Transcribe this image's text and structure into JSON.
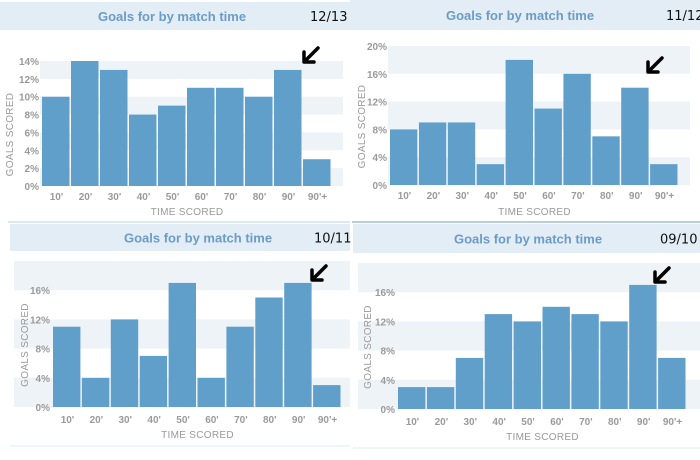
{
  "colors": {
    "bar": "#619fcb",
    "band": "#eef3f8",
    "header": "#e3edf6",
    "title": "#6b9cc6",
    "arrow": "#000000"
  },
  "chart_data": [
    {
      "type": "bar",
      "title": "Goals for by match time",
      "season": "12/13",
      "xlabel": "TIME SCORED",
      "ylabel": "GOALS SCORED",
      "categories": [
        "10'",
        "20'",
        "30'",
        "40'",
        "50'",
        "60'",
        "70'",
        "80'",
        "90'",
        "90'+"
      ],
      "values": [
        10,
        14,
        13,
        8,
        9,
        11,
        11,
        10,
        13,
        3
      ],
      "yticks": [
        "0%",
        "2%",
        "4%",
        "6%",
        "8%",
        "10%",
        "12%",
        "14%"
      ],
      "ytick_values": [
        0,
        2,
        4,
        6,
        8,
        10,
        12,
        14
      ],
      "ylim": [
        0,
        14
      ],
      "unit": "%",
      "annotation": "arrow pointing at 90' bar"
    },
    {
      "type": "bar",
      "title": "Goals for by match time",
      "season": "11/12",
      "xlabel": "TIME SCORED",
      "ylabel": "GOALS SCORED",
      "categories": [
        "10'",
        "20'",
        "30'",
        "40'",
        "50'",
        "60'",
        "70'",
        "80'",
        "90'",
        "90'+"
      ],
      "values": [
        8,
        9,
        9,
        3,
        18,
        11,
        16,
        7,
        14,
        3
      ],
      "yticks": [
        "0%",
        "4%",
        "8%",
        "12%",
        "16%",
        "20%"
      ],
      "ytick_values": [
        0,
        4,
        8,
        12,
        16,
        20
      ],
      "ylim": [
        0,
        20
      ],
      "unit": "%",
      "annotation": "arrow pointing at 90' bar"
    },
    {
      "type": "bar",
      "title": "Goals for by match time",
      "season": "10/11",
      "xlabel": "TIME SCORED",
      "ylabel": "GOALS SCORED",
      "categories": [
        "10'",
        "20'",
        "30'",
        "40'",
        "50'",
        "60'",
        "70'",
        "80'",
        "90'",
        "90'+"
      ],
      "values": [
        11,
        4,
        12,
        7,
        17,
        4,
        11,
        15,
        17,
        3
      ],
      "yticks": [
        "0%",
        "4%",
        "8%",
        "12%",
        "16%"
      ],
      "ytick_values": [
        0,
        4,
        8,
        12,
        16
      ],
      "ylim": [
        0,
        20
      ],
      "unit": "%",
      "annotation": "arrow pointing at 90' bar"
    },
    {
      "type": "bar",
      "title": "Goals for by match time",
      "season": "09/10",
      "xlabel": "TIME SCORED",
      "ylabel": "GOALS SCORED",
      "categories": [
        "10'",
        "20'",
        "30'",
        "40'",
        "50'",
        "60'",
        "70'",
        "80'",
        "90'",
        "90'+"
      ],
      "values": [
        3,
        3,
        7,
        13,
        12,
        14,
        13,
        12,
        17,
        7
      ],
      "yticks": [
        "0%",
        "4%",
        "8%",
        "12%",
        "16%"
      ],
      "ytick_values": [
        0,
        4,
        8,
        12,
        16
      ],
      "ylim": [
        0,
        20
      ],
      "unit": "%",
      "annotation": "arrow pointing at 90' bar"
    }
  ]
}
